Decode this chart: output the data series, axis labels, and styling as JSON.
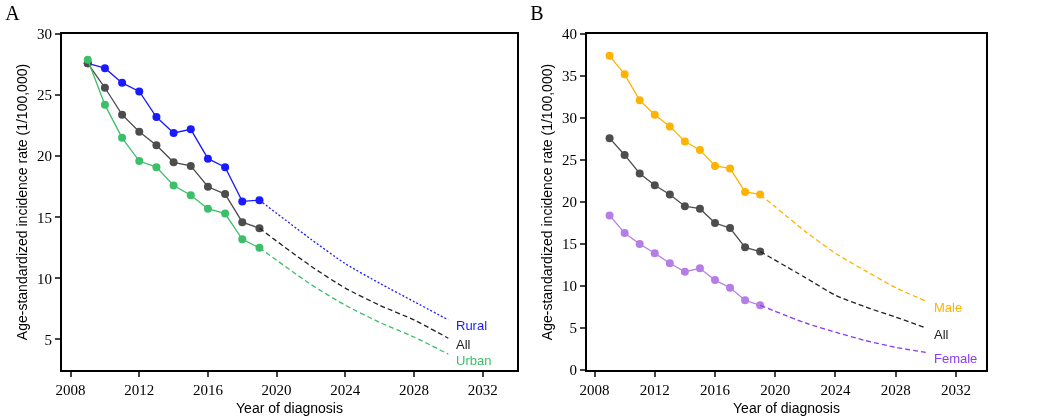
{
  "chart_data": [
    {
      "type": "line",
      "title": "A",
      "xlabel": "Year of diagnosis",
      "ylabel": "Age-standardized incidence rate (1/100,000)",
      "xlim": [
        2007.5,
        2034
      ],
      "xticks": [
        2008,
        2012,
        2016,
        2020,
        2024,
        2028,
        2032
      ],
      "ylim": [
        2.5,
        30
      ],
      "yticks": [
        5,
        10,
        15,
        20,
        25,
        30
      ],
      "grid": false,
      "legend": false,
      "series": [
        {
          "color": "#1a1aff",
          "marker": "circle",
          "line_style": "solid",
          "x": [
            2009,
            2010,
            2011,
            2012,
            2013,
            2014,
            2015,
            2016,
            2017,
            2018,
            2019
          ],
          "values": [
            27.6,
            27.2,
            26.0,
            25.3,
            23.2,
            21.9,
            22.2,
            19.8,
            19.1,
            16.3,
            16.4
          ]
        },
        {
          "color": "#4d4d4d",
          "marker": "circle",
          "line_style": "solid",
          "x": [
            2009,
            2010,
            2011,
            2012,
            2013,
            2014,
            2015,
            2016,
            2017,
            2018,
            2019
          ],
          "values": [
            27.6,
            25.6,
            23.4,
            22.0,
            20.9,
            19.5,
            19.2,
            17.5,
            16.9,
            14.6,
            14.1
          ]
        },
        {
          "color": "#3cbf6a",
          "marker": "circle",
          "line_style": "solid",
          "x": [
            2009,
            2010,
            2011,
            2012,
            2013,
            2014,
            2015,
            2016,
            2017,
            2018,
            2019
          ],
          "values": [
            27.9,
            24.2,
            21.5,
            19.6,
            19.1,
            17.6,
            16.8,
            15.7,
            15.3,
            13.2,
            12.5
          ]
        },
        {
          "name": "Rural",
          "color": "#1a1aff",
          "marker": "none",
          "line_style": "dotted",
          "x": [
            2019,
            2022,
            2024,
            2026,
            2028,
            2030
          ],
          "values": [
            16.4,
            13.2,
            11.2,
            9.6,
            8.1,
            6.6
          ]
        },
        {
          "name": "All",
          "color": "#222222",
          "marker": "none",
          "line_style": "dashed",
          "x": [
            2019,
            2022,
            2024,
            2026,
            2028,
            2030
          ],
          "values": [
            14.1,
            11.0,
            9.2,
            7.8,
            6.6,
            5.1
          ]
        },
        {
          "name": "Urban",
          "color": "#3cbf6a",
          "marker": "none",
          "line_style": "dashed",
          "x": [
            2019,
            2022,
            2024,
            2026,
            2028,
            2030
          ],
          "values": [
            12.5,
            9.5,
            7.8,
            6.4,
            5.2,
            3.8
          ]
        }
      ]
    },
    {
      "type": "line",
      "title": "B",
      "xlabel": "Year of diagnosis",
      "ylabel": "Age-standardized incidence rate (1/100,000)",
      "xlim": [
        2007.5,
        2034
      ],
      "xticks": [
        2008,
        2012,
        2016,
        2020,
        2024,
        2028,
        2032
      ],
      "ylim": [
        0,
        40
      ],
      "yticks": [
        0,
        5,
        10,
        15,
        20,
        25,
        30,
        35,
        40
      ],
      "grid": false,
      "legend": false,
      "series": [
        {
          "color": "#ffb300",
          "marker": "circle",
          "line_style": "solid",
          "x": [
            2009,
            2010,
            2011,
            2012,
            2013,
            2014,
            2015,
            2016,
            2017,
            2018,
            2019
          ],
          "values": [
            37.4,
            35.2,
            32.1,
            30.4,
            29.0,
            27.2,
            26.2,
            24.3,
            24.0,
            21.2,
            20.9
          ]
        },
        {
          "color": "#4d4d4d",
          "marker": "circle",
          "line_style": "solid",
          "x": [
            2009,
            2010,
            2011,
            2012,
            2013,
            2014,
            2015,
            2016,
            2017,
            2018,
            2019
          ],
          "values": [
            27.6,
            25.6,
            23.4,
            22.0,
            20.9,
            19.5,
            19.2,
            17.5,
            16.9,
            14.6,
            14.1
          ]
        },
        {
          "color": "#b57ee6",
          "marker": "circle",
          "line_style": "solid",
          "x": [
            2009,
            2010,
            2011,
            2012,
            2013,
            2014,
            2015,
            2016,
            2017,
            2018,
            2019
          ],
          "values": [
            18.4,
            16.3,
            15.0,
            13.9,
            12.7,
            11.7,
            12.1,
            10.7,
            9.8,
            8.3,
            7.7
          ]
        },
        {
          "name": "Male",
          "color": "#ffb300",
          "marker": "none",
          "line_style": "dashed",
          "x": [
            2019,
            2022,
            2024,
            2026,
            2028,
            2030
          ],
          "values": [
            20.9,
            16.5,
            13.9,
            11.8,
            9.8,
            8.2
          ]
        },
        {
          "name": "All",
          "color": "#222222",
          "marker": "none",
          "line_style": "dashed",
          "x": [
            2019,
            2022,
            2024,
            2026,
            2028,
            2030
          ],
          "values": [
            14.1,
            11.0,
            8.9,
            7.5,
            6.3,
            5.0
          ]
        },
        {
          "name": "Female",
          "color": "#8a3cf0",
          "marker": "none",
          "line_style": "dashed",
          "x": [
            2019,
            2022,
            2024,
            2026,
            2028,
            2030
          ],
          "values": [
            7.7,
            5.6,
            4.5,
            3.5,
            2.7,
            2.1
          ]
        }
      ]
    }
  ]
}
